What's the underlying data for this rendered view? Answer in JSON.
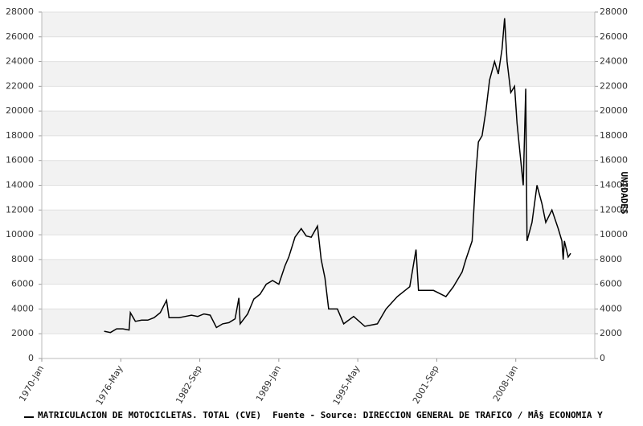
{
  "chart_data": {
    "type": "line",
    "y2_label": "UNIDADES",
    "source": "Fuente - Source: DIRECCION GENERAL DE TRAFICO / MÂ§ ECONOMIA Y",
    "xlim": [
      1970,
      2014.333
    ],
    "xticks": [
      {
        "value": 1970,
        "label": "1970-Jan"
      },
      {
        "value": 1976.333,
        "label": "1976-May"
      },
      {
        "value": 1982.667,
        "label": "1982-Sep"
      },
      {
        "value": 1989,
        "label": "1989-Jan"
      },
      {
        "value": 1995.333,
        "label": "1995-May"
      },
      {
        "value": 2001.667,
        "label": "2001-Sep"
      },
      {
        "value": 2008,
        "label": "2008-Jan"
      }
    ],
    "ylim": [
      0,
      28000
    ],
    "yticks": [
      0,
      2000,
      4000,
      6000,
      8000,
      10000,
      12000,
      14000,
      16000,
      18000,
      20000,
      22000,
      24000,
      26000,
      28000
    ],
    "y2lim": [
      0,
      28000
    ],
    "y2ticks": [
      0,
      2000,
      4000,
      6000,
      8000,
      10000,
      12000,
      14000,
      16000,
      18000,
      20000,
      22000,
      24000,
      26000,
      28000
    ],
    "grid": true,
    "x": [
      1975.0,
      1975.5,
      1976.0,
      1976.5,
      1977.0,
      1977.1,
      1977.5,
      1978.0,
      1978.5,
      1979.0,
      1979.5,
      1980.0,
      1980.2,
      1981.0,
      1981.5,
      1982.0,
      1982.5,
      1983.0,
      1983.5,
      1984.0,
      1984.5,
      1985.0,
      1985.5,
      1985.8,
      1985.9,
      1986.5,
      1987.0,
      1987.5,
      1988.0,
      1988.5,
      1989.0,
      1989.5,
      1989.8,
      1990.3,
      1990.8,
      1991.2,
      1991.6,
      1992.1,
      1992.4,
      1992.7,
      1993.0,
      1993.7,
      1994.2,
      1995.0,
      1995.9,
      1996.9,
      1997.6,
      1998.5,
      1999.5,
      2000.0,
      2000.2,
      2001.4,
      2002.4,
      2003.0,
      2003.7,
      2004.0,
      2004.5,
      2004.8,
      2005.0,
      2005.3,
      2005.6,
      2005.9,
      2006.3,
      2006.6,
      2006.9,
      2007.1,
      2007.3,
      2007.6,
      2007.9,
      2008.1,
      2008.4,
      2008.6,
      2008.8,
      2008.9,
      2009.3,
      2009.7,
      2010.1,
      2010.4,
      2010.9,
      2011.4,
      2011.7,
      2011.8,
      2011.9,
      2012.2,
      2012.4
    ],
    "series": [
      {
        "name": "MATRICULACION DE MOTOCICLETAS. TOTAL (CVE)",
        "color": "#000000",
        "values": [
          2200,
          2100,
          2400,
          2400,
          2300,
          3700,
          3000,
          3100,
          3100,
          3300,
          3700,
          4700,
          3300,
          3300,
          3400,
          3500,
          3400,
          3600,
          3500,
          2500,
          2800,
          2900,
          3200,
          4900,
          2800,
          3600,
          4800,
          5200,
          6000,
          6300,
          6000,
          7500,
          8200,
          9800,
          10500,
          9900,
          9800,
          10700,
          8000,
          6500,
          4000,
          4000,
          2800,
          3400,
          2600,
          2800,
          4000,
          5000,
          5800,
          8800,
          5500,
          5500,
          5000,
          5800,
          7000,
          8000,
          9500,
          15000,
          17500,
          18000,
          20000,
          22500,
          24000,
          23000,
          25000,
          27500,
          24000,
          21500,
          22000,
          19000,
          16000,
          14000,
          21800,
          9500,
          11000,
          14000,
          12500,
          11000,
          12000,
          10500,
          9500,
          8000,
          9500,
          8200,
          8500
        ]
      }
    ]
  }
}
